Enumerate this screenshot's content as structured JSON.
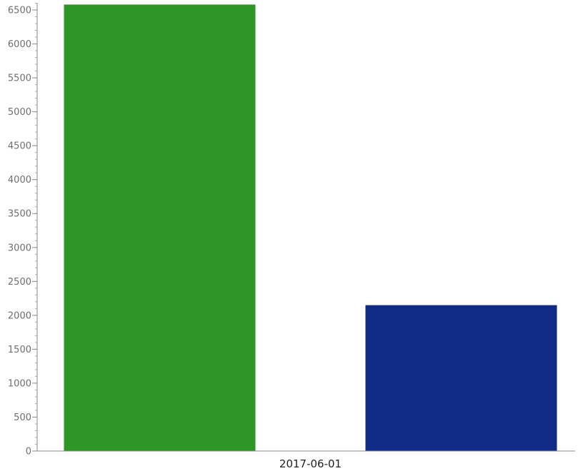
{
  "chart_data": {
    "type": "bar",
    "categories": [
      "2017-06-01"
    ],
    "series": [
      {
        "values": [
          6580
        ],
        "color": "#2e9626"
      },
      {
        "values": [
          2150
        ],
        "color": "#102b86"
      }
    ],
    "ylim": [
      0,
      6600
    ],
    "yticks": [
      0,
      500,
      1000,
      1500,
      2000,
      2500,
      3000,
      3500,
      4000,
      4500,
      5000,
      5500,
      6000,
      6500
    ],
    "title": "",
    "xlabel": "",
    "ylabel": "",
    "grid": false,
    "legend": "none"
  }
}
